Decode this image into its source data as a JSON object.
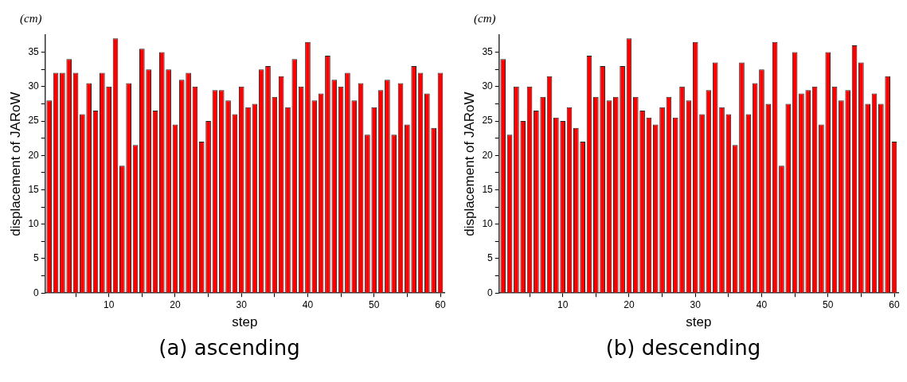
{
  "chart_data": [
    {
      "type": "bar",
      "xlabel": "step",
      "ylabel": "displacement of JARoW",
      "annotations": [
        "(cm)",
        "(a) ascending"
      ],
      "color": "#ff0000",
      "grid": false,
      "legend": false,
      "x": [
        1,
        2,
        3,
        4,
        5,
        6,
        7,
        8,
        9,
        10,
        11,
        12,
        13,
        14,
        15,
        16,
        17,
        18,
        19,
        20,
        21,
        22,
        23,
        24,
        25,
        26,
        27,
        28,
        29,
        30,
        31,
        32,
        33,
        34,
        35,
        36,
        37,
        38,
        39,
        40,
        41,
        42,
        43,
        44,
        45,
        46,
        47,
        48,
        49,
        50,
        51,
        52,
        53,
        54,
        55,
        56,
        57,
        58,
        59,
        60
      ],
      "values": [
        28,
        32,
        32,
        34,
        32,
        26,
        30.5,
        26.5,
        32,
        30,
        37,
        18.5,
        30.5,
        21.5,
        35.5,
        32.5,
        26.5,
        35,
        32.5,
        24.5,
        31,
        32,
        30,
        22,
        25,
        29.5,
        29.5,
        28,
        26,
        30,
        27,
        27.5,
        32.5,
        33,
        28.5,
        31.5,
        27,
        34,
        30,
        36.5,
        28,
        29,
        34.5,
        31,
        30,
        32,
        28,
        30.5,
        23,
        27,
        29.5,
        31,
        23,
        30.5,
        24.5,
        33,
        32,
        29,
        24,
        32
      ],
      "xlim": [
        0.4,
        60.6
      ],
      "xticks": [
        {
          "value": 5,
          "label": null
        },
        10,
        {
          "value": 15,
          "label": null
        },
        20,
        {
          "value": 25,
          "label": null
        },
        30,
        {
          "value": 35,
          "label": null
        },
        40,
        {
          "value": 45,
          "label": null
        },
        50,
        {
          "value": 55,
          "label": null
        },
        60
      ],
      "ylim": [
        0,
        37.5
      ],
      "yticks": [
        0,
        {
          "value": 2.5,
          "label": null
        },
        5,
        {
          "value": 7.5,
          "label": null
        },
        10,
        {
          "value": 12.5,
          "label": null
        },
        15,
        {
          "value": 17.5,
          "label": null
        },
        20,
        {
          "value": 22.5,
          "label": null
        },
        25,
        {
          "value": 27.5,
          "label": null
        },
        30,
        {
          "value": 32.5,
          "label": null
        },
        35
      ]
    },
    {
      "type": "bar",
      "xlabel": "step",
      "ylabel": "displacement of JARoW",
      "annotations": [
        "(cm)",
        "(b) descending"
      ],
      "color": "#ff0000",
      "grid": false,
      "legend": false,
      "x": [
        1,
        2,
        3,
        4,
        5,
        6,
        7,
        8,
        9,
        10,
        11,
        12,
        13,
        14,
        15,
        16,
        17,
        18,
        19,
        20,
        21,
        22,
        23,
        24,
        25,
        26,
        27,
        28,
        29,
        30,
        31,
        32,
        33,
        34,
        35,
        36,
        37,
        38,
        39,
        40,
        41,
        42,
        43,
        44,
        45,
        46,
        47,
        48,
        49,
        50,
        51,
        52,
        53,
        54,
        55,
        56,
        57,
        58,
        59,
        60
      ],
      "values": [
        34,
        23,
        30,
        25,
        30,
        26.5,
        28.5,
        31.5,
        25.5,
        25,
        27,
        24,
        22,
        34.5,
        28.5,
        33,
        28,
        28.5,
        33,
        37,
        28.5,
        26.5,
        25.5,
        24.5,
        27,
        28.5,
        25.5,
        30,
        28,
        36.5,
        26,
        29.5,
        33.5,
        27,
        26,
        21.5,
        33.5,
        26,
        30.5,
        32.5,
        27.5,
        36.5,
        18.5,
        27.5,
        35,
        29,
        29.5,
        30,
        24.5,
        35,
        30,
        28,
        29.5,
        36,
        33.5,
        27.5,
        29,
        27.5,
        31.5,
        22
      ],
      "xlim": [
        0.4,
        60.6
      ],
      "xticks": [
        {
          "value": 5,
          "label": null
        },
        10,
        {
          "value": 15,
          "label": null
        },
        20,
        {
          "value": 25,
          "label": null
        },
        30,
        {
          "value": 35,
          "label": null
        },
        40,
        {
          "value": 45,
          "label": null
        },
        50,
        {
          "value": 55,
          "label": null
        },
        60
      ],
      "ylim": [
        0,
        37.5
      ],
      "yticks": [
        0,
        {
          "value": 2.5,
          "label": null
        },
        5,
        {
          "value": 7.5,
          "label": null
        },
        10,
        {
          "value": 12.5,
          "label": null
        },
        15,
        {
          "value": 17.5,
          "label": null
        },
        20,
        {
          "value": 22.5,
          "label": null
        },
        25,
        {
          "value": 27.5,
          "label": null
        },
        30,
        {
          "value": 32.5,
          "label": null
        },
        35
      ]
    }
  ]
}
